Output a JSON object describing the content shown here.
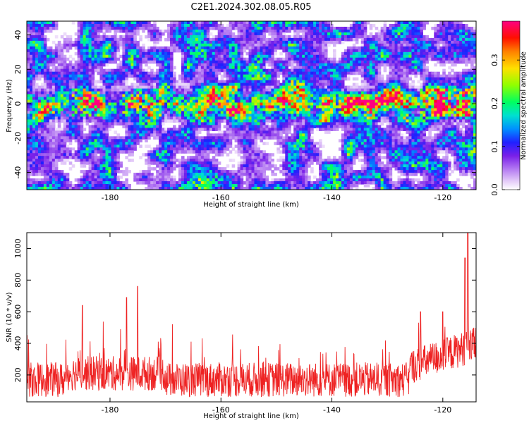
{
  "title": "C2E1.2024.302.08.05.R05",
  "colors": {
    "snr_line": "#ee2222",
    "colorbar": [
      "#ffffff",
      "#d9b8f5",
      "#a55df0",
      "#7a20e8",
      "#2020ff",
      "#00c0ff",
      "#00ff80",
      "#a0ff00",
      "#ffd000",
      "#ff3000",
      "#ff0080"
    ]
  },
  "chart_data": [
    {
      "type": "heatmap",
      "xlabel": "Height of straight line (km)",
      "ylabel": "Frequency (Hz)",
      "xlim": [
        -195,
        -114
      ],
      "ylim": [
        -50,
        48
      ],
      "xticks": [
        "-180",
        "-160",
        "-140",
        "-120"
      ],
      "xtick_values": [
        -180,
        -160,
        -140,
        -120
      ],
      "yticks": [
        "40",
        "20",
        "0",
        "-20",
        "-40"
      ],
      "ytick_values": [
        40,
        20,
        0,
        -20,
        -40
      ],
      "colorbar": {
        "label": "Normalized spectral amplitude",
        "range": [
          0.0,
          0.39
        ],
        "ticks": [
          "0.0",
          "0.1",
          "0.2",
          "0.3"
        ],
        "tick_values": [
          0.0,
          0.1,
          0.2,
          0.3
        ]
      },
      "signal_band_hz": [
        -12,
        12
      ],
      "strong_regions_km": [
        [
          -124,
          -115
        ],
        [
          -187,
          -182
        ],
        [
          -178,
          -170
        ]
      ]
    },
    {
      "type": "line",
      "xlabel": "Height of straight line (km)",
      "ylabel": "SNR (10 * v/v)",
      "xlim": [
        -195,
        -114
      ],
      "ylim": [
        30,
        1100
      ],
      "xticks": [
        "-180",
        "-160",
        "-140",
        "-120"
      ],
      "xtick_values": [
        -180,
        -160,
        -140,
        -120
      ],
      "yticks": [
        "200",
        "400",
        "600",
        "800",
        "1000"
      ],
      "ytick_values": [
        200,
        400,
        600,
        800,
        1000
      ],
      "baseline": 170,
      "notable_peaks": [
        {
          "x": -195,
          "y": 450
        },
        {
          "x": -185,
          "y": 640
        },
        {
          "x": -175,
          "y": 760
        },
        {
          "x": -177,
          "y": 690
        },
        {
          "x": -124,
          "y": 600
        },
        {
          "x": -120,
          "y": 600
        },
        {
          "x": -116,
          "y": 940
        },
        {
          "x": -115.5,
          "y": 1100
        }
      ]
    }
  ]
}
